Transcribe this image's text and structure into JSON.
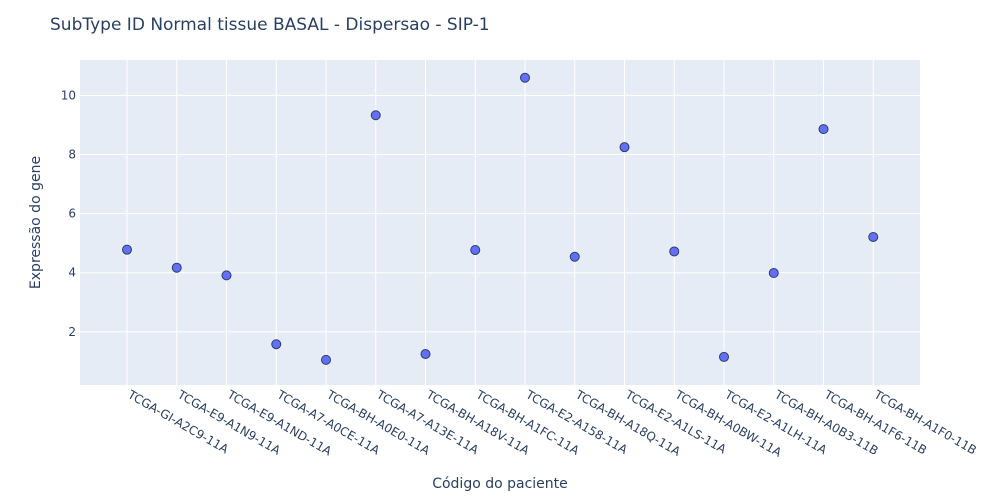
{
  "chart_data": {
    "type": "scatter",
    "title": "SubType ID Normal tissue BASAL - Dispersao - SIP-1",
    "xlabel": "Código do paciente",
    "ylabel": "Expressão do gene",
    "categories": [
      "TCGA-GI-A2C9-11A",
      "TCGA-E9-A1N9-11A",
      "TCGA-E9-A1ND-11A",
      "TCGA-A7-A0CE-11A",
      "TCGA-BH-A0E0-11A",
      "TCGA-A7-A13E-11A",
      "TCGA-BH-A18V-11A",
      "TCGA-BH-A1FC-11A",
      "TCGA-E2-A158-11A",
      "TCGA-BH-A18Q-11A",
      "TCGA-E2-A1LS-11A",
      "TCGA-BH-A0BW-11A",
      "TCGA-E2-A1LH-11A",
      "TCGA-BH-A0B3-11B",
      "TCGA-BH-A1F6-11B",
      "TCGA-BH-A1F0-11B"
    ],
    "values": [
      4.78,
      4.17,
      3.91,
      1.58,
      1.05,
      9.33,
      1.25,
      4.77,
      10.6,
      4.54,
      8.25,
      4.72,
      1.15,
      3.99,
      8.86,
      5.21
    ],
    "y_ticks": [
      2,
      4,
      6,
      8,
      10
    ],
    "ylim": [
      0.2,
      11.2
    ],
    "grid": true,
    "colors": {
      "plot_bg": "#E5ECF6",
      "grid": "#FFFFFF",
      "marker_fill": "#636EFA",
      "marker_stroke": "#2a3f5f",
      "text": "#2a3f5f"
    }
  }
}
